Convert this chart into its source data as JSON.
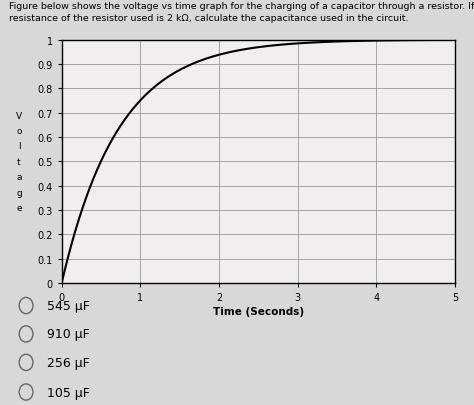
{
  "title_line1": "Figure below shows the voltage vs time graph for the charging of a capacitor through a resistor. If the",
  "title_line2": "resistance of the resistor used is 2 kΩ, calculate the capacitance used in the circuit.",
  "xlabel": "Time (Seconds)",
  "xlim": [
    0,
    5
  ],
  "ylim": [
    0,
    1.0
  ],
  "xticks": [
    0,
    1,
    2,
    3,
    4,
    5
  ],
  "yticks": [
    0,
    0.1,
    0.2,
    0.3,
    0.4,
    0.5,
    0.6,
    0.7,
    0.8,
    0.9,
    1.0
  ],
  "ytick_labels": [
    "0",
    "0.1",
    "0.2",
    "0.3",
    "0.4",
    "0.5",
    "0.6",
    "0.7",
    "0.8",
    "0.9",
    "1"
  ],
  "tau": 0.72,
  "curve_color": "#000000",
  "grid_color": "#999999",
  "plot_bg_color": "#f0eeee",
  "fig_bg_color": "#d8d8d8",
  "ylabel_letters": [
    "V",
    "o",
    "l",
    "t",
    "a",
    "g",
    "e"
  ],
  "options": [
    "545 μF",
    "910 μF",
    "256 μF",
    "105 μF"
  ],
  "fig_width": 4.74,
  "fig_height": 4.06,
  "dpi": 100
}
